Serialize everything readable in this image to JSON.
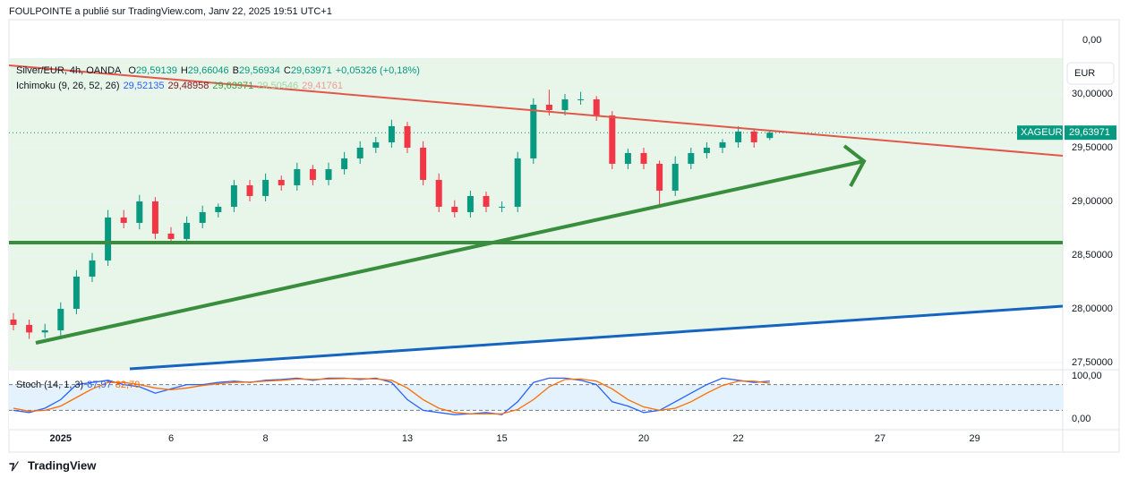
{
  "header": "FOULPOINTE a publié sur TradingView.com, Janv 22, 2025 19:51 UTC+1",
  "footer": "TradingView",
  "currency": "EUR",
  "top_scale_label": "0,00",
  "chart_data": {
    "type": "candlestick",
    "title": "Silver/EUR, 4h, OANDA",
    "ohlc_legend": [
      [
        "O",
        "29,59139"
      ],
      [
        "H",
        "29,66046"
      ],
      [
        "B",
        "29,56934"
      ],
      [
        "C",
        "29,63971"
      ],
      [
        "",
        "+0,05326 (+0,18%)"
      ]
    ],
    "ichimoku_legend": {
      "name": "Ichimoku (9, 26, 52, 26)",
      "values": [
        "29,52135",
        "29,48958",
        "29,63971",
        "29,50546",
        "29,41761"
      ],
      "colors": [
        "#2962ff",
        "#801922",
        "#43a047",
        "#a5d6a7",
        "#ef9a9a"
      ]
    },
    "symbol": "XAGEUR",
    "last_price": {
      "value": 29.63971,
      "label": "29,63971"
    },
    "up_color": "#089981",
    "down_color": "#f23645",
    "categories": [
      null,
      null,
      null,
      "2025",
      null,
      null,
      null,
      null,
      null,
      null,
      "6",
      null,
      null,
      null,
      null,
      null,
      "8",
      null,
      null,
      null,
      null,
      null,
      null,
      null,
      null,
      "13",
      null,
      null,
      null,
      null,
      null,
      "15",
      null,
      null,
      null,
      null,
      null,
      null,
      null,
      null,
      "20",
      null,
      null,
      null,
      null,
      null,
      "22",
      null,
      null,
      null,
      null,
      null,
      null,
      null,
      null,
      "27",
      null,
      null,
      null,
      null,
      null,
      "29",
      null,
      null,
      null,
      null,
      null
    ],
    "open": [
      27.9,
      27.85,
      27.78,
      27.8,
      28.0,
      28.3,
      28.45,
      28.85,
      28.8,
      29.0,
      28.7,
      28.65,
      28.8,
      28.9,
      28.95,
      29.15,
      29.05,
      29.2,
      29.15,
      29.3,
      29.2,
      29.3,
      29.4,
      29.5,
      29.55,
      29.7,
      29.5,
      29.2,
      28.95,
      28.9,
      29.05,
      28.95,
      28.95,
      29.4,
      29.9,
      29.85,
      29.95,
      29.95,
      29.8,
      29.35,
      29.45,
      29.35,
      29.1,
      29.35,
      29.45,
      29.5,
      29.55,
      29.65,
      29.59,
      null,
      null,
      null,
      null,
      null,
      null,
      null,
      null,
      null,
      null,
      null,
      null,
      null,
      null,
      null,
      null,
      null,
      null
    ],
    "high": [
      27.96,
      27.9,
      27.86,
      28.06,
      28.36,
      28.52,
      28.92,
      28.92,
      29.06,
      29.04,
      28.76,
      28.86,
      28.96,
      28.98,
      29.2,
      29.2,
      29.26,
      29.24,
      29.36,
      29.34,
      29.36,
      29.46,
      29.56,
      29.6,
      29.76,
      29.74,
      29.56,
      29.26,
      29.01,
      29.1,
      29.09,
      29.0,
      29.46,
      29.96,
      30.04,
      30.0,
      30.02,
      29.98,
      29.84,
      29.49,
      29.5,
      29.38,
      29.42,
      29.5,
      29.55,
      29.58,
      29.7,
      29.68,
      29.66,
      null,
      null,
      null,
      null,
      null,
      null,
      null,
      null,
      null,
      null,
      null,
      null,
      null,
      null,
      null,
      null,
      null,
      null
    ],
    "low": [
      27.8,
      27.72,
      27.73,
      27.75,
      27.95,
      28.25,
      28.4,
      28.75,
      28.74,
      28.65,
      28.6,
      28.6,
      28.75,
      28.85,
      28.9,
      29.0,
      29.0,
      29.1,
      29.1,
      29.15,
      29.15,
      29.25,
      29.35,
      29.45,
      29.5,
      29.45,
      29.15,
      28.9,
      28.85,
      28.85,
      28.9,
      28.9,
      28.9,
      29.35,
      29.8,
      29.8,
      29.9,
      29.75,
      29.3,
      29.3,
      29.3,
      28.95,
      29.05,
      29.3,
      29.4,
      29.45,
      29.5,
      29.5,
      29.57,
      null,
      null,
      null,
      null,
      null,
      null,
      null,
      null,
      null,
      null,
      null,
      null,
      null,
      null,
      null,
      null,
      null,
      null
    ],
    "close": [
      27.85,
      27.78,
      27.8,
      28.0,
      28.3,
      28.45,
      28.85,
      28.8,
      29.0,
      28.7,
      28.65,
      28.8,
      28.9,
      28.95,
      29.15,
      29.05,
      29.2,
      29.15,
      29.3,
      29.2,
      29.3,
      29.4,
      29.5,
      29.55,
      29.7,
      29.5,
      29.2,
      28.95,
      28.9,
      29.05,
      28.95,
      28.95,
      29.4,
      29.9,
      29.85,
      29.95,
      29.95,
      29.8,
      29.35,
      29.45,
      29.35,
      29.1,
      29.35,
      29.45,
      29.5,
      29.55,
      29.65,
      29.55,
      29.64,
      null,
      null,
      null,
      null,
      null,
      null,
      null,
      null,
      null,
      null,
      null,
      null,
      null,
      null,
      null,
      null,
      null,
      null
    ],
    "ylim": [
      27.433,
      30.333
    ],
    "yticks": [
      {
        "value": 30,
        "label": "30,00000"
      },
      {
        "value": 29.5,
        "label": "29,50000"
      },
      {
        "value": 29,
        "label": "29,00000"
      },
      {
        "value": 28.5,
        "label": "28,50000"
      },
      {
        "value": 28,
        "label": "28,00000"
      },
      {
        "value": 27.5,
        "label": "27,50000"
      }
    ],
    "stoch": {
      "name": "Stoch (14, 1, 3)",
      "k_label": "87,97",
      "d_label": "82,70",
      "ylim": [
        -25,
        114.6
      ],
      "yticks": [
        {
          "value": 100,
          "label": "100,00"
        },
        {
          "value": 0,
          "label": "0,00"
        }
      ],
      "series": [
        {
          "name": "K",
          "color": "#2962ff",
          "values": [
            20,
            15,
            25,
            45,
            80,
            85,
            90,
            80,
            75,
            60,
            70,
            80,
            80,
            85,
            88,
            85,
            90,
            92,
            95,
            90,
            95,
            95,
            92,
            95,
            85,
            45,
            20,
            15,
            10,
            12,
            15,
            10,
            40,
            85,
            95,
            95,
            90,
            80,
            40,
            30,
            15,
            20,
            40,
            60,
            80,
            95,
            90,
            85,
            88,
            null,
            null,
            null,
            null,
            null,
            null,
            null,
            null,
            null,
            null,
            null,
            null,
            null,
            null,
            null,
            null,
            null,
            null
          ]
        },
        {
          "name": "D",
          "color": "#ff6d00",
          "values": [
            25,
            18,
            20,
            30,
            50,
            70,
            85,
            85,
            80,
            72,
            68,
            72,
            78,
            82,
            85,
            86,
            88,
            90,
            93,
            92,
            93,
            94,
            94,
            93,
            90,
            72,
            45,
            25,
            15,
            12,
            12,
            12,
            22,
            45,
            75,
            92,
            93,
            88,
            70,
            45,
            28,
            20,
            25,
            40,
            60,
            78,
            88,
            88,
            83,
            null,
            null,
            null,
            null,
            null,
            null,
            null,
            null,
            null,
            null,
            null,
            null,
            null,
            null,
            null,
            null,
            null,
            null
          ]
        }
      ]
    }
  }
}
